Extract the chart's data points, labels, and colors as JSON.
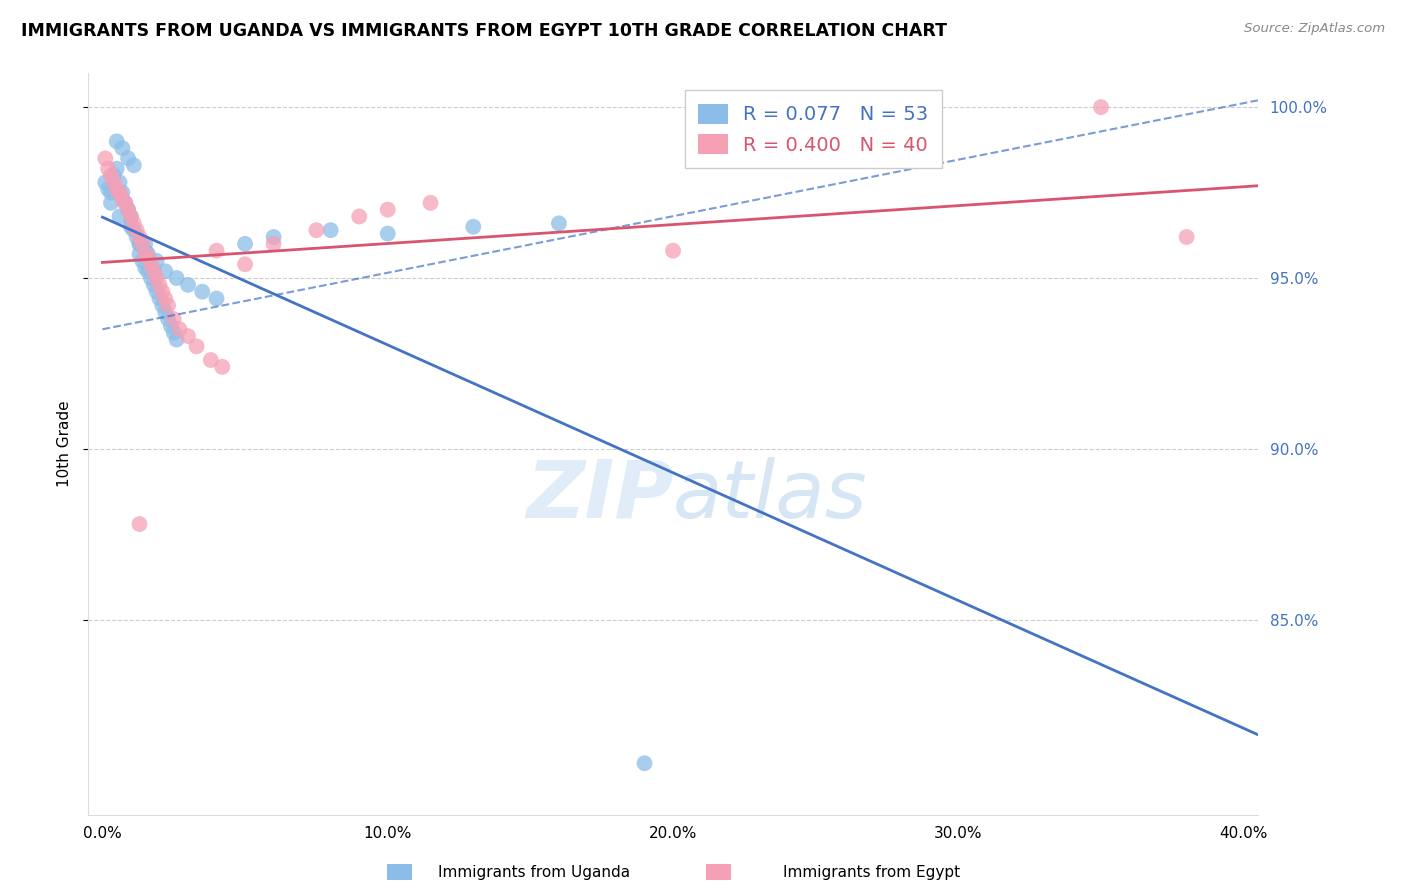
{
  "title": "IMMIGRANTS FROM UGANDA VS IMMIGRANTS FROM EGYPT 10TH GRADE CORRELATION CHART",
  "source": "Source: ZipAtlas.com",
  "ylabel": "10th Grade",
  "xlim": [
    -0.005,
    0.405
  ],
  "ylim": [
    0.793,
    1.01
  ],
  "yticks": [
    0.85,
    0.9,
    0.95,
    1.0
  ],
  "xticks": [
    0.0,
    0.1,
    0.2,
    0.3,
    0.4
  ],
  "color_uganda": "#8BBDE8",
  "color_egypt": "#F5A0B5",
  "color_uganda_line": "#4472C4",
  "color_egypt_line": "#D9546E",
  "color_right_axis": "#4472C4",
  "color_grid": "#C8C8C8",
  "uganda_x": [
    0.001,
    0.002,
    0.003,
    0.004,
    0.005,
    0.006,
    0.007,
    0.008,
    0.009,
    0.01,
    0.01,
    0.011,
    0.012,
    0.013,
    0.013,
    0.014,
    0.015,
    0.015,
    0.016,
    0.017,
    0.018,
    0.018,
    0.019,
    0.02,
    0.021,
    0.022,
    0.023,
    0.024,
    0.025,
    0.026,
    0.005,
    0.007,
    0.009,
    0.011,
    0.013,
    0.016,
    0.019,
    0.022,
    0.026,
    0.03,
    0.035,
    0.04,
    0.05,
    0.06,
    0.08,
    0.1,
    0.13,
    0.16,
    0.003,
    0.006,
    0.01,
    0.015,
    0.19
  ],
  "uganda_y": [
    0.978,
    0.976,
    0.975,
    0.98,
    0.982,
    0.978,
    0.975,
    0.972,
    0.97,
    0.968,
    0.966,
    0.964,
    0.962,
    0.96,
    0.957,
    0.955,
    0.958,
    0.953,
    0.952,
    0.95,
    0.948,
    0.952,
    0.946,
    0.944,
    0.942,
    0.94,
    0.938,
    0.936,
    0.934,
    0.932,
    0.99,
    0.988,
    0.985,
    0.983,
    0.96,
    0.957,
    0.955,
    0.952,
    0.95,
    0.948,
    0.946,
    0.944,
    0.96,
    0.962,
    0.964,
    0.963,
    0.965,
    0.966,
    0.972,
    0.968,
    0.965,
    0.96,
    0.808
  ],
  "egypt_x": [
    0.001,
    0.002,
    0.003,
    0.005,
    0.006,
    0.008,
    0.009,
    0.01,
    0.011,
    0.012,
    0.013,
    0.014,
    0.015,
    0.016,
    0.017,
    0.018,
    0.019,
    0.02,
    0.021,
    0.022,
    0.023,
    0.025,
    0.027,
    0.03,
    0.033,
    0.038,
    0.042,
    0.05,
    0.06,
    0.075,
    0.09,
    0.1,
    0.115,
    0.2,
    0.004,
    0.007,
    0.013,
    0.35,
    0.38,
    0.04
  ],
  "egypt_y": [
    0.985,
    0.982,
    0.98,
    0.976,
    0.975,
    0.972,
    0.97,
    0.968,
    0.966,
    0.964,
    0.962,
    0.96,
    0.957,
    0.956,
    0.954,
    0.952,
    0.95,
    0.948,
    0.946,
    0.944,
    0.942,
    0.938,
    0.935,
    0.933,
    0.93,
    0.926,
    0.924,
    0.954,
    0.96,
    0.964,
    0.968,
    0.97,
    0.972,
    0.958,
    0.978,
    0.973,
    0.878,
    1.0,
    0.962,
    0.958
  ],
  "legend_uganda_r": "R = 0.077",
  "legend_uganda_n": "N = 53",
  "legend_egypt_r": "R = 0.400",
  "legend_egypt_n": "N = 40"
}
